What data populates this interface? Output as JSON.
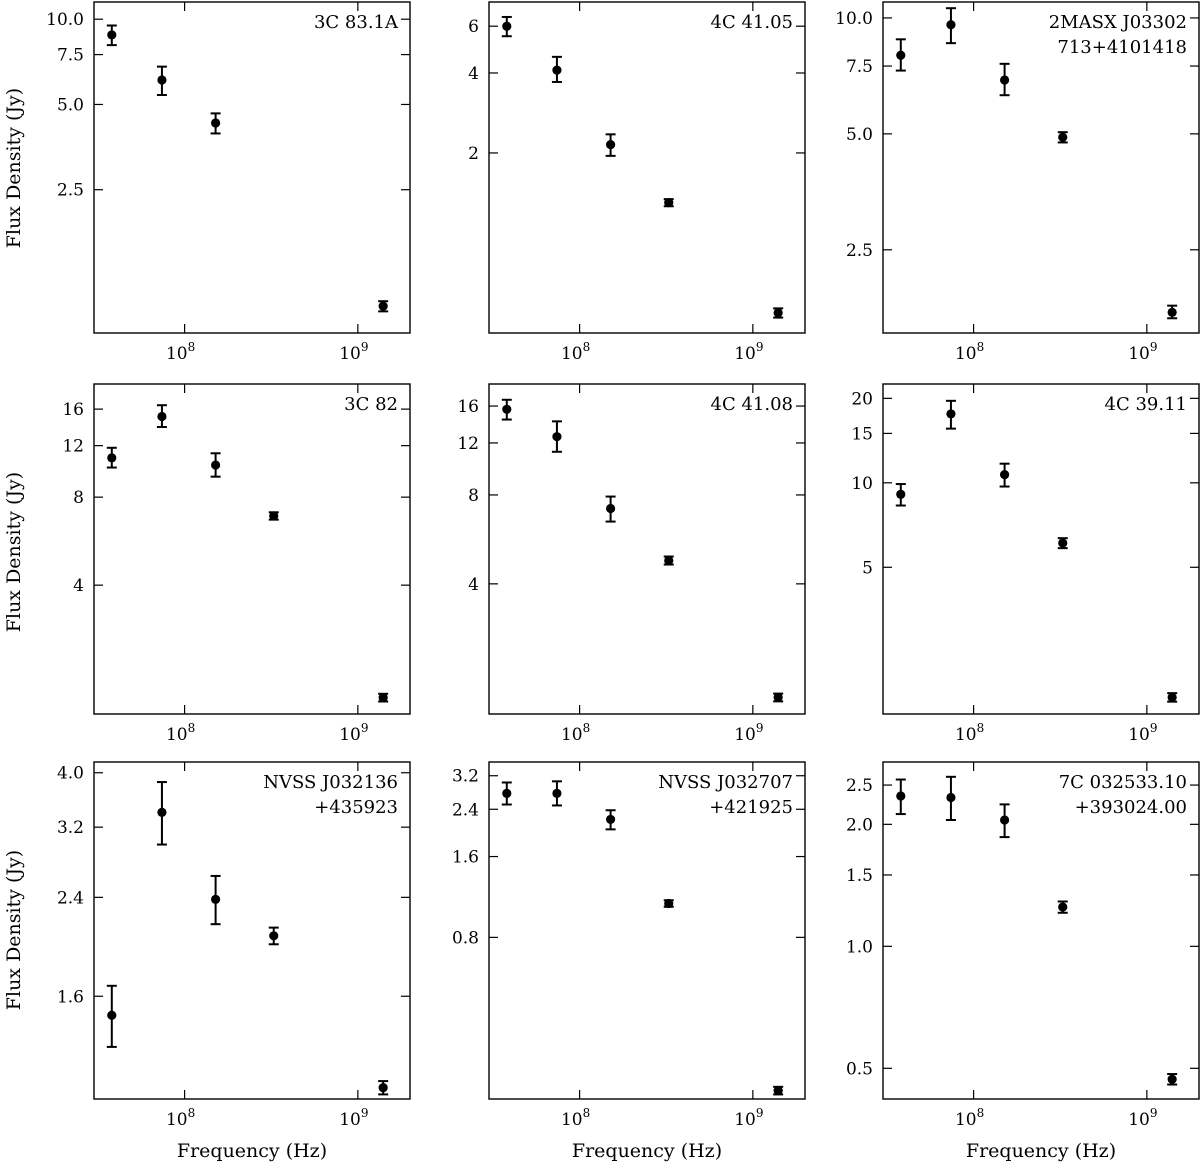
{
  "figure": {
    "ylabel": "Flux Density (Jy)",
    "xlabel": "Frequency (Hz)"
  },
  "chart_data": [
    {
      "type": "scatter",
      "title_lines": [
        "3C 83.1A"
      ],
      "x_scale": "log",
      "y_scale": "log",
      "xlim": [
        30000000,
        2000000000
      ],
      "ylim": [
        0.78,
        11.5
      ],
      "x_ticks": [
        {
          "value": 100000000,
          "base": "10",
          "exp": "8"
        },
        {
          "value": 1000000000,
          "base": "10",
          "exp": "9"
        }
      ],
      "y_ticks": [
        {
          "value": 10.0,
          "label": "10.0"
        },
        {
          "value": 7.5,
          "label": "7.5"
        },
        {
          "value": 5.0,
          "label": "5.0"
        },
        {
          "value": 2.5,
          "label": "2.5"
        }
      ],
      "points": [
        {
          "x": 38000000,
          "y": 8.8,
          "ylo": 8.1,
          "yhi": 9.5
        },
        {
          "x": 74000000,
          "y": 6.1,
          "ylo": 5.4,
          "yhi": 6.8
        },
        {
          "x": 151000000,
          "y": 4.3,
          "ylo": 3.95,
          "yhi": 4.65
        },
        {
          "x": 1400000000,
          "y": 0.97,
          "ylo": 0.93,
          "yhi": 1.01
        }
      ]
    },
    {
      "type": "scatter",
      "title_lines": [
        "4C 41.05"
      ],
      "x_scale": "log",
      "y_scale": "log",
      "xlim": [
        30000000,
        2000000000
      ],
      "ylim": [
        0.42,
        7.4
      ],
      "x_ticks": [
        {
          "value": 100000000,
          "base": "10",
          "exp": "8"
        },
        {
          "value": 1000000000,
          "base": "10",
          "exp": "9"
        }
      ],
      "y_ticks": [
        {
          "value": 6,
          "label": "6"
        },
        {
          "value": 4,
          "label": "4"
        },
        {
          "value": 2,
          "label": "2"
        }
      ],
      "points": [
        {
          "x": 38000000,
          "y": 6.0,
          "ylo": 5.5,
          "yhi": 6.5
        },
        {
          "x": 74000000,
          "y": 4.1,
          "ylo": 3.7,
          "yhi": 4.6
        },
        {
          "x": 151000000,
          "y": 2.15,
          "ylo": 1.95,
          "yhi": 2.35
        },
        {
          "x": 327000000,
          "y": 1.3,
          "ylo": 1.26,
          "yhi": 1.34
        },
        {
          "x": 1400000000,
          "y": 0.5,
          "ylo": 0.48,
          "yhi": 0.52
        }
      ]
    },
    {
      "type": "scatter",
      "title_lines": [
        "2MASX J03302",
        "713+4101418"
      ],
      "x_scale": "log",
      "y_scale": "log",
      "xlim": [
        30000000,
        2000000000
      ],
      "ylim": [
        1.52,
        11.0
      ],
      "x_ticks": [
        {
          "value": 100000000,
          "base": "10",
          "exp": "8"
        },
        {
          "value": 1000000000,
          "base": "10",
          "exp": "9"
        }
      ],
      "y_ticks": [
        {
          "value": 10.0,
          "label": "10.0"
        },
        {
          "value": 7.5,
          "label": "7.5"
        },
        {
          "value": 5.0,
          "label": "5.0"
        },
        {
          "value": 2.5,
          "label": "2.5"
        }
      ],
      "points": [
        {
          "x": 38000000,
          "y": 8.0,
          "ylo": 7.3,
          "yhi": 8.8
        },
        {
          "x": 74000000,
          "y": 9.6,
          "ylo": 8.6,
          "yhi": 10.6
        },
        {
          "x": 151000000,
          "y": 6.9,
          "ylo": 6.3,
          "yhi": 7.6
        },
        {
          "x": 327000000,
          "y": 4.9,
          "ylo": 4.75,
          "yhi": 5.05
        },
        {
          "x": 1400000000,
          "y": 1.72,
          "ylo": 1.66,
          "yhi": 1.79
        }
      ]
    },
    {
      "type": "scatter",
      "title_lines": [
        "3C 82"
      ],
      "x_scale": "log",
      "y_scale": "log",
      "xlim": [
        30000000,
        2000000000
      ],
      "ylim": [
        1.45,
        19.5
      ],
      "x_ticks": [
        {
          "value": 100000000,
          "base": "10",
          "exp": "8"
        },
        {
          "value": 1000000000,
          "base": "10",
          "exp": "9"
        }
      ],
      "y_ticks": [
        {
          "value": 16,
          "label": "16"
        },
        {
          "value": 12,
          "label": "12"
        },
        {
          "value": 8,
          "label": "8"
        },
        {
          "value": 4,
          "label": "4"
        }
      ],
      "points": [
        {
          "x": 38000000,
          "y": 10.9,
          "ylo": 10.1,
          "yhi": 11.8
        },
        {
          "x": 74000000,
          "y": 15.1,
          "ylo": 13.9,
          "yhi": 16.5
        },
        {
          "x": 151000000,
          "y": 10.3,
          "ylo": 9.4,
          "yhi": 11.3
        },
        {
          "x": 327000000,
          "y": 6.9,
          "ylo": 6.7,
          "yhi": 7.1
        },
        {
          "x": 1400000000,
          "y": 1.65,
          "ylo": 1.6,
          "yhi": 1.7
        }
      ]
    },
    {
      "type": "scatter",
      "title_lines": [
        "4C 41.08"
      ],
      "x_scale": "log",
      "y_scale": "log",
      "xlim": [
        30000000,
        2000000000
      ],
      "ylim": [
        1.45,
        19.0
      ],
      "x_ticks": [
        {
          "value": 100000000,
          "base": "10",
          "exp": "8"
        },
        {
          "value": 1000000000,
          "base": "10",
          "exp": "9"
        }
      ],
      "y_ticks": [
        {
          "value": 16,
          "label": "16"
        },
        {
          "value": 12,
          "label": "12"
        },
        {
          "value": 8,
          "label": "8"
        },
        {
          "value": 4,
          "label": "4"
        }
      ],
      "points": [
        {
          "x": 38000000,
          "y": 15.6,
          "ylo": 14.4,
          "yhi": 16.8
        },
        {
          "x": 74000000,
          "y": 12.6,
          "ylo": 11.2,
          "yhi": 14.2
        },
        {
          "x": 151000000,
          "y": 7.2,
          "ylo": 6.5,
          "yhi": 7.9
        },
        {
          "x": 327000000,
          "y": 4.8,
          "ylo": 4.65,
          "yhi": 4.95
        },
        {
          "x": 1400000000,
          "y": 1.65,
          "ylo": 1.6,
          "yhi": 1.7
        }
      ]
    },
    {
      "type": "scatter",
      "title_lines": [
        "4C 39.11"
      ],
      "x_scale": "log",
      "y_scale": "log",
      "xlim": [
        30000000,
        2000000000
      ],
      "ylim": [
        1.5,
        22.5
      ],
      "x_ticks": [
        {
          "value": 100000000,
          "base": "10",
          "exp": "8"
        },
        {
          "value": 1000000000,
          "base": "10",
          "exp": "9"
        }
      ],
      "y_ticks": [
        {
          "value": 20,
          "label": "20"
        },
        {
          "value": 15,
          "label": "15"
        },
        {
          "value": 10,
          "label": "10"
        },
        {
          "value": 5,
          "label": "5"
        }
      ],
      "points": [
        {
          "x": 38000000,
          "y": 9.1,
          "ylo": 8.3,
          "yhi": 9.9
        },
        {
          "x": 74000000,
          "y": 17.6,
          "ylo": 15.6,
          "yhi": 19.6
        },
        {
          "x": 151000000,
          "y": 10.7,
          "ylo": 9.7,
          "yhi": 11.7
        },
        {
          "x": 327000000,
          "y": 6.1,
          "ylo": 5.85,
          "yhi": 6.35
        },
        {
          "x": 1400000000,
          "y": 1.72,
          "ylo": 1.66,
          "yhi": 1.78
        }
      ]
    },
    {
      "type": "scatter",
      "title_lines": [
        "NVSS J032136",
        "+435923"
      ],
      "x_scale": "log",
      "y_scale": "log",
      "xlim": [
        30000000,
        2000000000
      ],
      "ylim": [
        1.05,
        4.18
      ],
      "x_ticks": [
        {
          "value": 100000000,
          "base": "10",
          "exp": "8"
        },
        {
          "value": 1000000000,
          "base": "10",
          "exp": "9"
        }
      ],
      "y_ticks": [
        {
          "value": 4.0,
          "label": "4.0"
        },
        {
          "value": 3.2,
          "label": "3.2"
        },
        {
          "value": 2.4,
          "label": "2.4"
        },
        {
          "value": 1.6,
          "label": "1.6"
        }
      ],
      "points": [
        {
          "x": 38000000,
          "y": 1.48,
          "ylo": 1.3,
          "yhi": 1.67
        },
        {
          "x": 74000000,
          "y": 3.4,
          "ylo": 2.98,
          "yhi": 3.85
        },
        {
          "x": 151000000,
          "y": 2.38,
          "ylo": 2.15,
          "yhi": 2.62
        },
        {
          "x": 327000000,
          "y": 2.05,
          "ylo": 1.98,
          "yhi": 2.12
        },
        {
          "x": 1400000000,
          "y": 1.1,
          "ylo": 1.07,
          "yhi": 1.13
        }
      ]
    },
    {
      "type": "scatter",
      "title_lines": [
        "NVSS J032707",
        "+421925"
      ],
      "x_scale": "log",
      "y_scale": "log",
      "xlim": [
        30000000,
        2000000000
      ],
      "ylim": [
        0.2,
        3.6
      ],
      "x_ticks": [
        {
          "value": 100000000,
          "base": "10",
          "exp": "8"
        },
        {
          "value": 1000000000,
          "base": "10",
          "exp": "9"
        }
      ],
      "y_ticks": [
        {
          "value": 3.2,
          "label": "3.2"
        },
        {
          "value": 2.4,
          "label": "2.4"
        },
        {
          "value": 1.6,
          "label": "1.6"
        },
        {
          "value": 0.8,
          "label": "0.8"
        }
      ],
      "points": [
        {
          "x": 38000000,
          "y": 2.75,
          "ylo": 2.5,
          "yhi": 3.02
        },
        {
          "x": 74000000,
          "y": 2.75,
          "ylo": 2.48,
          "yhi": 3.05
        },
        {
          "x": 151000000,
          "y": 2.2,
          "ylo": 2.02,
          "yhi": 2.38
        },
        {
          "x": 327000000,
          "y": 1.07,
          "ylo": 1.04,
          "yhi": 1.1
        },
        {
          "x": 1400000000,
          "y": 0.215,
          "ylo": 0.208,
          "yhi": 0.222
        }
      ]
    },
    {
      "type": "scatter",
      "title_lines": [
        "7C 032533.10",
        "+393024.00"
      ],
      "x_scale": "log",
      "y_scale": "log",
      "xlim": [
        30000000,
        2000000000
      ],
      "ylim": [
        0.42,
        2.85
      ],
      "x_ticks": [
        {
          "value": 100000000,
          "base": "10",
          "exp": "8"
        },
        {
          "value": 1000000000,
          "base": "10",
          "exp": "9"
        }
      ],
      "y_ticks": [
        {
          "value": 2.5,
          "label": "2.5"
        },
        {
          "value": 2.0,
          "label": "2.0"
        },
        {
          "value": 1.5,
          "label": "1.5"
        },
        {
          "value": 1.0,
          "label": "1.0"
        },
        {
          "value": 0.5,
          "label": "0.5"
        }
      ],
      "points": [
        {
          "x": 38000000,
          "y": 2.35,
          "ylo": 2.12,
          "yhi": 2.58
        },
        {
          "x": 74000000,
          "y": 2.33,
          "ylo": 2.05,
          "yhi": 2.62
        },
        {
          "x": 151000000,
          "y": 2.05,
          "ylo": 1.86,
          "yhi": 2.24
        },
        {
          "x": 327000000,
          "y": 1.25,
          "ylo": 1.21,
          "yhi": 1.29
        },
        {
          "x": 1400000000,
          "y": 0.47,
          "ylo": 0.456,
          "yhi": 0.484
        }
      ]
    }
  ]
}
